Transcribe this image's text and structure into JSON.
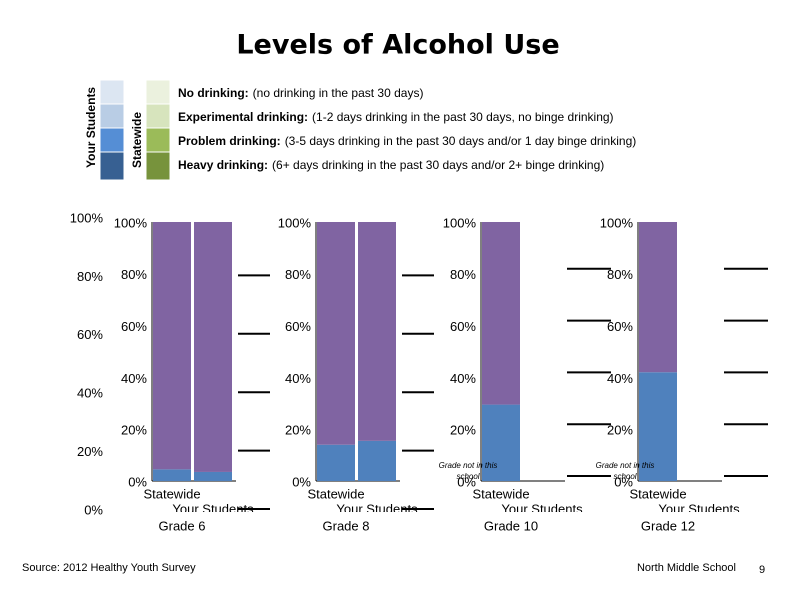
{
  "title": "Levels of Alcohol Use",
  "legend": {
    "columns": [
      "Your Students",
      "Statewide"
    ],
    "items": [
      {
        "term": "No drinking:",
        "description": "(no drinking in the past 30 days)",
        "colors": [
          "#dce6f2",
          "#ebf1de"
        ]
      },
      {
        "term": "Experimental drinking:",
        "description": "(1-2 days drinking in the past 30 days, no binge drinking)",
        "colors": [
          "#b9cde5",
          "#d7e4bd"
        ]
      },
      {
        "term": "Problem drinking:",
        "description": "(3-5 days drinking in the past 30 days and/or 1 day binge drinking)",
        "colors": [
          "#558ed5",
          "#9bbb59"
        ]
      },
      {
        "term": "Heavy drinking:",
        "description": "(6+ days drinking in the past 30 days and/or 2+ binge drinking)",
        "colors": [
          "#376092",
          "#77933c"
        ]
      }
    ]
  },
  "outer_axis": {
    "ylim": [
      0,
      100
    ],
    "yticks": [
      {
        "value": 0,
        "label": "0%"
      },
      {
        "value": 20,
        "label": "20%"
      },
      {
        "value": 40,
        "label": "40%"
      },
      {
        "value": 60,
        "label": "60%"
      },
      {
        "value": 80,
        "label": "80%"
      },
      {
        "value": 100,
        "label": "100%"
      }
    ]
  },
  "chart_data": [
    {
      "type": "bar",
      "stacked": true,
      "title": "Grade 6",
      "categories": [
        "Statewide",
        "Your Students"
      ],
      "series": [
        {
          "color": "#4f81bd",
          "values": [
            4.5,
            3.5
          ]
        },
        {
          "color": "#8064a2",
          "values": [
            95.5,
            96.5
          ]
        }
      ],
      "ylim": [
        0,
        100
      ],
      "yticks": [
        {
          "value": 0,
          "label": "0%"
        },
        {
          "value": 20,
          "label": "20%"
        },
        {
          "value": 40,
          "label": "40%"
        },
        {
          "value": 60,
          "label": "60%"
        },
        {
          "value": 80,
          "label": "80%"
        },
        {
          "value": 100,
          "label": "100%"
        }
      ]
    },
    {
      "type": "bar",
      "stacked": true,
      "title": "Grade 8",
      "categories": [
        "Statewide",
        "Your Students"
      ],
      "series": [
        {
          "color": "#4f81bd",
          "values": [
            14,
            15.5
          ]
        },
        {
          "color": "#8064a2",
          "values": [
            86,
            84.5
          ]
        }
      ],
      "ylim": [
        0,
        100
      ],
      "yticks": [
        {
          "value": 0,
          "label": "0%"
        },
        {
          "value": 20,
          "label": "20%"
        },
        {
          "value": 40,
          "label": "40%"
        },
        {
          "value": 60,
          "label": "60%"
        },
        {
          "value": 80,
          "label": "80%"
        },
        {
          "value": 100,
          "label": "100%"
        }
      ]
    },
    {
      "type": "bar",
      "stacked": true,
      "title": "Grade 10",
      "categories": [
        "Statewide",
        "Your Students"
      ],
      "annotation": "Grade not in this school",
      "series": [
        {
          "color": "#4f81bd",
          "values": [
            29.5,
            null
          ]
        },
        {
          "color": "#8064a2",
          "values": [
            70.5,
            null
          ]
        }
      ],
      "ylim": [
        0,
        100
      ],
      "yticks": [
        {
          "value": 0,
          "label": "0%"
        },
        {
          "value": 20,
          "label": "20%"
        },
        {
          "value": 40,
          "label": "40%"
        },
        {
          "value": 60,
          "label": "60%"
        },
        {
          "value": 80,
          "label": "80%"
        },
        {
          "value": 100,
          "label": "100%"
        }
      ]
    },
    {
      "type": "bar",
      "stacked": true,
      "title": "Grade 12",
      "categories": [
        "Statewide",
        "Your Students"
      ],
      "annotation": "Grade not in this school",
      "series": [
        {
          "color": "#4f81bd",
          "values": [
            42,
            null
          ]
        },
        {
          "color": "#8064a2",
          "values": [
            58,
            null
          ]
        }
      ],
      "ylim": [
        0,
        100
      ],
      "yticks": [
        {
          "value": 0,
          "label": "0%"
        },
        {
          "value": 20,
          "label": "20%"
        },
        {
          "value": 40,
          "label": "40%"
        },
        {
          "value": 60,
          "label": "60%"
        },
        {
          "value": 80,
          "label": "80%"
        },
        {
          "value": 100,
          "label": "100%"
        }
      ]
    }
  ],
  "footer": {
    "source": "Source: 2012 Healthy Youth Survey",
    "school": "North Middle School",
    "page": "9"
  }
}
